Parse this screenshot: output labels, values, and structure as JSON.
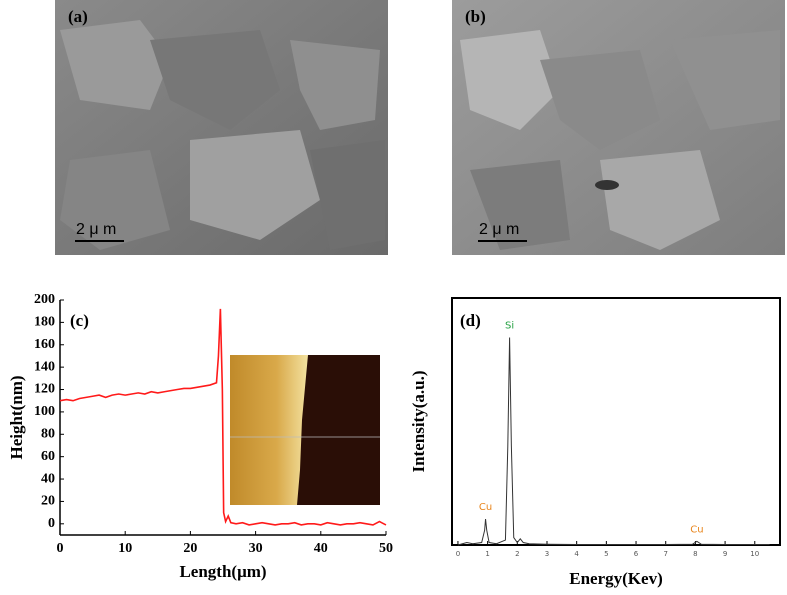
{
  "images": [
    {
      "label": "(a)",
      "scale_bar": "2 μ m"
    },
    {
      "label": "(b)",
      "scale_bar": "2 μ m"
    }
  ],
  "chart_data": [
    {
      "type": "line",
      "panel_label": "(c)",
      "xlabel": "Length(μm)",
      "ylabel": "Height(nm)",
      "x": [
        0,
        1,
        2,
        3,
        4,
        5,
        6,
        7,
        8,
        9,
        10,
        11,
        12,
        13,
        14,
        15,
        16,
        17,
        18,
        19,
        20,
        21,
        22,
        23,
        24,
        24.3,
        24.6,
        24.9,
        25.1,
        25.4,
        25.8,
        26.2,
        27,
        28,
        29,
        30,
        31,
        32,
        33,
        34,
        35,
        36,
        37,
        38,
        39,
        40,
        41,
        42,
        43,
        44,
        45,
        46,
        47,
        48,
        49,
        50
      ],
      "series": [
        {
          "color": "#ff1a1a",
          "values": [
            110,
            111,
            110,
            112,
            113,
            114,
            115,
            113,
            115,
            116,
            115,
            116,
            117,
            116,
            118,
            117,
            118,
            119,
            120,
            121,
            121,
            122,
            123,
            124,
            126,
            150,
            192,
            120,
            10,
            2,
            7,
            1,
            0,
            1,
            -1,
            0,
            1,
            0,
            -1,
            0,
            0,
            1,
            -1,
            0,
            0,
            -1,
            1,
            0,
            -1,
            0,
            0,
            1,
            0,
            -1,
            2,
            -1
          ]
        }
      ],
      "xlim": [
        0,
        50
      ],
      "xticks": [
        0,
        10,
        20,
        30,
        40,
        50
      ],
      "ylim": [
        -10,
        200
      ],
      "yticks": [
        0,
        20,
        40,
        60,
        80,
        100,
        120,
        140,
        160,
        180,
        200
      ]
    },
    {
      "type": "line",
      "panel_label": "(d)",
      "xlabel": "Energy(Kev)",
      "ylabel": "Intensity(a.u.)",
      "x": [
        0,
        0.3,
        0.5,
        0.8,
        0.9,
        0.93,
        0.97,
        1.05,
        1.3,
        1.6,
        1.68,
        1.74,
        1.8,
        1.88,
        2.0,
        2.1,
        2.2,
        2.4,
        3,
        4,
        5,
        6,
        7,
        7.9,
        8.05,
        8.2,
        9,
        10,
        10.5
      ],
      "series": [
        {
          "color": "#333333",
          "values": [
            0,
            1,
            0.5,
            1,
            6,
            10.5,
            6,
            1,
            0.5,
            2,
            40,
            84,
            40,
            3,
            1,
            2.5,
            1,
            0.5,
            0.3,
            0.2,
            0.2,
            0.2,
            0.2,
            0.3,
            1.5,
            0.3,
            0.2,
            0.2,
            0.2
          ]
        }
      ],
      "xlim": [
        -0.2,
        10.85
      ],
      "xticks": [
        0,
        1,
        2,
        3,
        4,
        5,
        6,
        7,
        8,
        9,
        10
      ],
      "ylim": [
        0,
        100
      ],
      "annotations": [
        {
          "text": "Cu",
          "x": 0.93,
          "y": 10.5,
          "color": "#e8841a"
        },
        {
          "text": "Si",
          "x": 1.74,
          "y": 84,
          "color": "#22a040"
        },
        {
          "text": "Cu",
          "x": 8.05,
          "y": 1.5,
          "color": "#e8841a"
        }
      ]
    }
  ]
}
